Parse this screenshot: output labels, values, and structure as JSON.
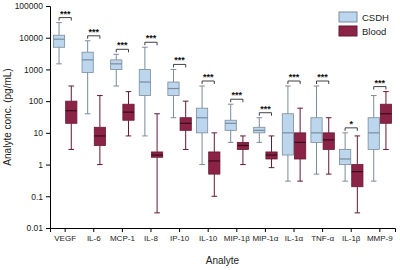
{
  "chart_data": {
    "type": "box",
    "x_label": "Analyte",
    "y_label": "Analyte conc. (pg/mL)",
    "categories": [
      "VEGF",
      "IL-6",
      "MCP-1",
      "IL-8",
      "IP-10",
      "IL-10",
      "MIP-1β",
      "MIP-1α",
      "IL-1α",
      "TNF-α",
      "IL-1β",
      "MMP-9"
    ],
    "series": [
      {
        "name": "CSDH",
        "color": "#bcd6ee",
        "min": [
          1500,
          40,
          300,
          8,
          30,
          1,
          5,
          5,
          0.3,
          0.5,
          0.3,
          0.3
        ],
        "q1": [
          5000,
          800,
          1000,
          150,
          150,
          10,
          12,
          10,
          2,
          5,
          1,
          3
        ],
        "median": [
          9000,
          2000,
          1500,
          400,
          250,
          30,
          20,
          12,
          10,
          10,
          1.5,
          10
        ],
        "q3": [
          12000,
          3500,
          2000,
          1000,
          400,
          60,
          25,
          15,
          40,
          30,
          3,
          30
        ],
        "max": [
          30000,
          8000,
          3000,
          5000,
          1000,
          300,
          80,
          30,
          300,
          300,
          10,
          150
        ]
      },
      {
        "name": "Blood",
        "color": "#8b2346",
        "min": [
          3,
          1,
          8,
          0.03,
          3,
          0.1,
          1,
          0.8,
          0.3,
          0.5,
          0.03,
          3
        ],
        "q1": [
          20,
          4,
          25,
          1.7,
          12,
          0.5,
          3,
          1.5,
          1.5,
          3,
          0.2,
          20
        ],
        "median": [
          50,
          8,
          45,
          2,
          20,
          1.3,
          4,
          2,
          5,
          6,
          0.6,
          40
        ],
        "q3": [
          100,
          15,
          80,
          2.5,
          30,
          2.5,
          5,
          2.5,
          10,
          10,
          1,
          80
        ],
        "max": [
          300,
          150,
          200,
          40,
          100,
          10,
          8,
          8,
          60,
          30,
          8,
          200
        ]
      }
    ],
    "significance": [
      "***",
      "***",
      "***",
      "***",
      "***",
      "***",
      "***",
      "***",
      "***",
      "***",
      "*",
      "***"
    ],
    "log": "y",
    "ylim": [
      0.01,
      100000
    ],
    "yticks": [
      0.01,
      0.1,
      1,
      10,
      100,
      1000,
      10000,
      100000
    ],
    "grid": false,
    "legend": "upper right"
  }
}
